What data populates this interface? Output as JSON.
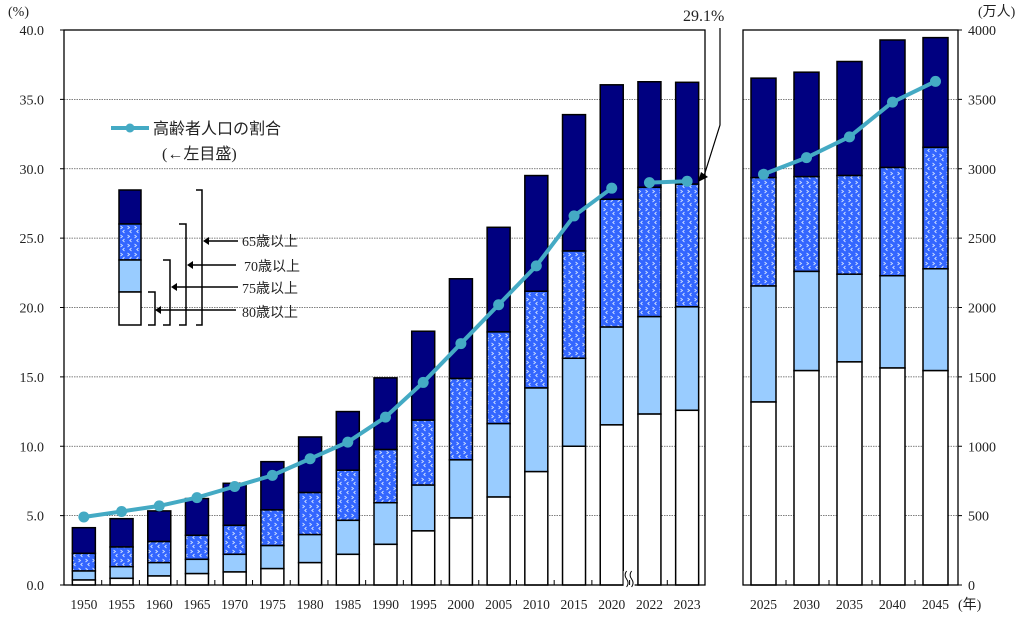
{
  "chart_data": {
    "type": "bar",
    "stacked": true,
    "left_axis": {
      "unit_label": "(%)",
      "ylim": [
        0,
        40
      ],
      "ticks": [
        "0.0",
        "5.0",
        "10.0",
        "15.0",
        "20.0",
        "25.0",
        "30.0",
        "35.0",
        "40.0"
      ]
    },
    "right_axis": {
      "unit_label": "(万人)",
      "ylim": [
        0,
        4000
      ],
      "ticks": [
        "0",
        "500",
        "1000",
        "1500",
        "2000",
        "2500",
        "3000",
        "3500",
        "4000"
      ]
    },
    "x_unit_label": "(年)",
    "grid": true,
    "categories_left": [
      "1950",
      "1955",
      "1960",
      "1965",
      "1970",
      "1975",
      "1980",
      "1985",
      "1990",
      "1995",
      "2000",
      "2005",
      "2010",
      "2015",
      "2020",
      "2022",
      "2023"
    ],
    "categories_right": [
      "2025",
      "2030",
      "2035",
      "2040",
      "2045"
    ],
    "axis_break_after": "2020",
    "series": [
      {
        "name": "65歳以上",
        "color": "#000080",
        "axis": "right",
        "values": [
          413,
          478,
          534,
          623,
          733,
          889,
          1067,
          1250,
          1493,
          1829,
          2207,
          2578,
          2951,
          3390,
          3605,
          3627,
          3623,
          3653,
          3696,
          3773,
          3928,
          3945
        ]
      },
      {
        "name": "70歳以上",
        "color": "#3366ff",
        "pattern": "dotted-chevrons",
        "axis": "right",
        "values": [
          228,
          274,
          313,
          358,
          430,
          541,
          666,
          827,
          976,
          1188,
          1488,
          1824,
          2117,
          2407,
          2780,
          2866,
          2889,
          2936,
          2943,
          2951,
          3009,
          3154
        ]
      },
      {
        "name": "75歳以上",
        "color": "#99ccff",
        "axis": "right",
        "values": [
          101,
          132,
          161,
          185,
          221,
          284,
          363,
          466,
          593,
          720,
          902,
          1163,
          1420,
          1634,
          1859,
          1934,
          2005,
          2155,
          2260,
          2240,
          2229,
          2279
        ]
      },
      {
        "name": "80歳以上",
        "color": "#ffffff",
        "axis": "right",
        "values": [
          36,
          48,
          65,
          82,
          94,
          118,
          161,
          221,
          293,
          390,
          483,
          634,
          817,
          1000,
          1154,
          1232,
          1259,
          1319,
          1545,
          1608,
          1564,
          1545
        ]
      }
    ],
    "line": {
      "name": "高齢者人口の割合",
      "sub_label": "(←左目盛)",
      "color": "#44aac4",
      "axis": "left",
      "values": [
        4.9,
        5.3,
        5.7,
        6.3,
        7.1,
        7.9,
        9.1,
        10.3,
        12.1,
        14.6,
        17.4,
        20.2,
        23.0,
        26.6,
        28.6,
        29.0,
        29.1,
        29.6,
        30.8,
        32.3,
        34.8,
        36.3
      ]
    },
    "annotation": {
      "label": "29.1%",
      "target": "2023"
    },
    "legend": {
      "placement": "upper-left"
    }
  }
}
